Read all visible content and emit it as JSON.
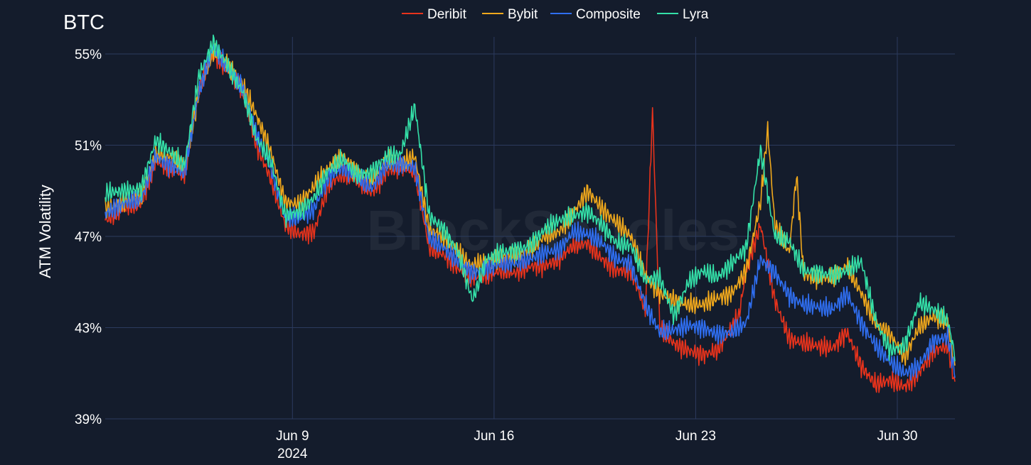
{
  "chart_data": {
    "type": "line",
    "title": "BTC",
    "ylabel": "ATM Volatility",
    "xlabel": "",
    "x_range": [
      "2024-06-02T12:00",
      "2024-07-02T00:00"
    ],
    "ylim": [
      39,
      55.5
    ],
    "y_ticks": [
      {
        "value": 39,
        "label": "39%"
      },
      {
        "value": 43,
        "label": "43%"
      },
      {
        "value": 47,
        "label": "47%"
      },
      {
        "value": 51,
        "label": "51%"
      },
      {
        "value": 55,
        "label": "55%"
      }
    ],
    "x_ticks": [
      {
        "value": "2024-06-09",
        "label": "Jun 9",
        "sublabel": "2024"
      },
      {
        "value": "2024-06-16",
        "label": "Jun 16",
        "sublabel": ""
      },
      {
        "value": "2024-06-23",
        "label": "Jun 23",
        "sublabel": ""
      },
      {
        "value": "2024-06-30",
        "label": "Jun 30",
        "sublabel": ""
      }
    ],
    "grid": true,
    "legend_position": "top-center",
    "watermark": "BlockScholes",
    "series": [
      {
        "name": "Deribit",
        "color": "#e8331c",
        "x": [
          "2024-06-02T12:00",
          "2024-06-03T06:00",
          "2024-06-03T18:00",
          "2024-06-04T06:00",
          "2024-06-04T18:00",
          "2024-06-05T06:00",
          "2024-06-05T18:00",
          "2024-06-06T06:00",
          "2024-06-06T18:00",
          "2024-06-07T06:00",
          "2024-06-07T18:00",
          "2024-06-08T06:00",
          "2024-06-08T18:00",
          "2024-06-09T06:00",
          "2024-06-09T18:00",
          "2024-06-10T06:00",
          "2024-06-10T18:00",
          "2024-06-11T06:00",
          "2024-06-11T18:00",
          "2024-06-12T06:00",
          "2024-06-12T18:00",
          "2024-06-13T06:00",
          "2024-06-13T18:00",
          "2024-06-14T06:00",
          "2024-06-14T18:00",
          "2024-06-15T06:00",
          "2024-06-15T18:00",
          "2024-06-16T06:00",
          "2024-06-16T18:00",
          "2024-06-17T06:00",
          "2024-06-17T18:00",
          "2024-06-18T06:00",
          "2024-06-18T18:00",
          "2024-06-19T06:00",
          "2024-06-19T18:00",
          "2024-06-20T06:00",
          "2024-06-20T18:00",
          "2024-06-21T06:00",
          "2024-06-21T12:00",
          "2024-06-21T18:00",
          "2024-06-22T06:00",
          "2024-06-22T18:00",
          "2024-06-23T06:00",
          "2024-06-23T18:00",
          "2024-06-24T06:00",
          "2024-06-24T12:00",
          "2024-06-24T18:00",
          "2024-06-25T06:00",
          "2024-06-25T18:00",
          "2024-06-26T06:00",
          "2024-06-26T18:00",
          "2024-06-27T06:00",
          "2024-06-27T18:00",
          "2024-06-28T06:00",
          "2024-06-28T18:00",
          "2024-06-29T06:00",
          "2024-06-29T18:00",
          "2024-06-30T06:00",
          "2024-06-30T18:00",
          "2024-07-01T06:00",
          "2024-07-01T18:00",
          "2024-07-02T00:00"
        ],
        "values": [
          47.7,
          48.3,
          48.4,
          50.3,
          50.0,
          49.7,
          53.5,
          55.0,
          54.3,
          53.5,
          51.0,
          49.5,
          47.5,
          47.1,
          47.2,
          49.3,
          49.7,
          49.5,
          48.9,
          49.8,
          50.1,
          49.8,
          46.5,
          46.2,
          45.6,
          45.2,
          45.3,
          45.5,
          45.4,
          45.7,
          45.7,
          46.0,
          46.6,
          46.7,
          46.0,
          45.5,
          45.5,
          43.8,
          52.5,
          43.0,
          42.3,
          42.0,
          41.8,
          42.0,
          43.0,
          43.5,
          45.5,
          47.5,
          44.2,
          42.5,
          42.3,
          42.2,
          42.1,
          42.8,
          41.3,
          40.5,
          40.7,
          40.4,
          41.0,
          42.0,
          42.2,
          40.5
        ]
      },
      {
        "name": "Bybit",
        "color": "#f0a81c",
        "x": [
          "2024-06-02T12:00",
          "2024-06-03T06:00",
          "2024-06-03T18:00",
          "2024-06-04T06:00",
          "2024-06-04T18:00",
          "2024-06-05T06:00",
          "2024-06-05T18:00",
          "2024-06-06T06:00",
          "2024-06-06T18:00",
          "2024-06-07T06:00",
          "2024-06-07T18:00",
          "2024-06-08T06:00",
          "2024-06-08T18:00",
          "2024-06-09T06:00",
          "2024-06-09T18:00",
          "2024-06-10T06:00",
          "2024-06-10T18:00",
          "2024-06-11T06:00",
          "2024-06-11T18:00",
          "2024-06-12T06:00",
          "2024-06-12T18:00",
          "2024-06-13T06:00",
          "2024-06-13T18:00",
          "2024-06-14T06:00",
          "2024-06-14T18:00",
          "2024-06-15T06:00",
          "2024-06-15T18:00",
          "2024-06-16T06:00",
          "2024-06-16T18:00",
          "2024-06-17T06:00",
          "2024-06-17T18:00",
          "2024-06-18T06:00",
          "2024-06-18T18:00",
          "2024-06-19T06:00",
          "2024-06-19T18:00",
          "2024-06-20T06:00",
          "2024-06-20T18:00",
          "2024-06-21T06:00",
          "2024-06-21T18:00",
          "2024-06-22T06:00",
          "2024-06-22T18:00",
          "2024-06-23T06:00",
          "2024-06-23T18:00",
          "2024-06-24T06:00",
          "2024-06-24T18:00",
          "2024-06-25T06:00",
          "2024-06-25T12:00",
          "2024-06-25T18:00",
          "2024-06-26T06:00",
          "2024-06-26T12:00",
          "2024-06-26T18:00",
          "2024-06-27T06:00",
          "2024-06-27T18:00",
          "2024-06-28T06:00",
          "2024-06-28T18:00",
          "2024-06-29T06:00",
          "2024-06-29T18:00",
          "2024-06-30T06:00",
          "2024-06-30T18:00",
          "2024-07-01T06:00",
          "2024-07-01T18:00",
          "2024-07-02T00:00"
        ],
        "values": [
          48.2,
          48.6,
          48.8,
          50.6,
          50.5,
          50.0,
          53.3,
          55.2,
          54.5,
          53.7,
          52.3,
          50.7,
          48.5,
          48.4,
          49.2,
          50.0,
          50.5,
          49.8,
          49.5,
          50.3,
          50.2,
          50.5,
          47.3,
          47.0,
          46.3,
          45.7,
          45.9,
          46.1,
          46.2,
          46.4,
          47.0,
          47.2,
          48.0,
          49.0,
          48.2,
          47.6,
          47.0,
          45.3,
          44.5,
          44.2,
          44.0,
          44.0,
          44.3,
          44.5,
          45.5,
          48.5,
          51.7,
          47.5,
          46.3,
          49.7,
          45.3,
          45.2,
          45.2,
          45.7,
          44.5,
          43.2,
          42.7,
          41.7,
          43.0,
          43.5,
          43.2,
          41.2
        ]
      },
      {
        "name": "Composite",
        "color": "#2f6ef0",
        "x": [
          "2024-06-02T12:00",
          "2024-06-03T06:00",
          "2024-06-03T18:00",
          "2024-06-04T06:00",
          "2024-06-04T18:00",
          "2024-06-05T06:00",
          "2024-06-05T18:00",
          "2024-06-06T06:00",
          "2024-06-06T18:00",
          "2024-06-07T06:00",
          "2024-06-07T18:00",
          "2024-06-08T06:00",
          "2024-06-08T18:00",
          "2024-06-09T06:00",
          "2024-06-09T18:00",
          "2024-06-10T06:00",
          "2024-06-10T18:00",
          "2024-06-11T06:00",
          "2024-06-11T18:00",
          "2024-06-12T06:00",
          "2024-06-12T18:00",
          "2024-06-13T06:00",
          "2024-06-13T18:00",
          "2024-06-14T06:00",
          "2024-06-14T18:00",
          "2024-06-15T06:00",
          "2024-06-15T18:00",
          "2024-06-16T06:00",
          "2024-06-16T18:00",
          "2024-06-17T06:00",
          "2024-06-17T18:00",
          "2024-06-18T06:00",
          "2024-06-18T18:00",
          "2024-06-19T06:00",
          "2024-06-19T18:00",
          "2024-06-20T06:00",
          "2024-06-20T18:00",
          "2024-06-21T06:00",
          "2024-06-21T18:00",
          "2024-06-22T06:00",
          "2024-06-22T18:00",
          "2024-06-23T06:00",
          "2024-06-23T18:00",
          "2024-06-24T06:00",
          "2024-06-24T18:00",
          "2024-06-25T06:00",
          "2024-06-25T18:00",
          "2024-06-26T06:00",
          "2024-06-26T18:00",
          "2024-06-27T06:00",
          "2024-06-27T18:00",
          "2024-06-28T06:00",
          "2024-06-28T18:00",
          "2024-06-29T06:00",
          "2024-06-29T18:00",
          "2024-06-30T06:00",
          "2024-06-30T18:00",
          "2024-07-01T06:00",
          "2024-07-01T18:00",
          "2024-07-02T00:00"
        ],
        "values": [
          48.0,
          48.5,
          48.6,
          50.5,
          50.1,
          49.8,
          53.3,
          55.3,
          54.4,
          53.6,
          51.5,
          50.0,
          47.8,
          47.8,
          48.2,
          49.6,
          50.0,
          49.6,
          49.1,
          50.1,
          50.2,
          50.0,
          46.9,
          46.5,
          45.9,
          45.4,
          45.6,
          45.8,
          45.8,
          46.0,
          46.3,
          46.4,
          47.2,
          47.1,
          46.7,
          46.0,
          45.8,
          44.0,
          42.8,
          42.9,
          43.1,
          43.0,
          42.7,
          42.8,
          43.2,
          46.0,
          45.4,
          44.4,
          44.0,
          43.9,
          43.8,
          44.5,
          43.2,
          42.2,
          41.5,
          41.0,
          41.3,
          42.4,
          42.6,
          41.0
        ]
      },
      {
        "name": "Lyra",
        "color": "#34e0a8",
        "x": [
          "2024-06-02T12:00",
          "2024-06-03T06:00",
          "2024-06-03T18:00",
          "2024-06-04T06:00",
          "2024-06-04T18:00",
          "2024-06-05T06:00",
          "2024-06-05T18:00",
          "2024-06-06T06:00",
          "2024-06-06T18:00",
          "2024-06-07T06:00",
          "2024-06-07T18:00",
          "2024-06-08T06:00",
          "2024-06-08T18:00",
          "2024-06-09T06:00",
          "2024-06-09T18:00",
          "2024-06-10T06:00",
          "2024-06-10T18:00",
          "2024-06-11T06:00",
          "2024-06-11T18:00",
          "2024-06-12T06:00",
          "2024-06-12T18:00",
          "2024-06-13T06:00",
          "2024-06-13T18:00",
          "2024-06-14T06:00",
          "2024-06-14T18:00",
          "2024-06-15T06:00",
          "2024-06-15T18:00",
          "2024-06-16T06:00",
          "2024-06-16T18:00",
          "2024-06-17T06:00",
          "2024-06-17T18:00",
          "2024-06-18T06:00",
          "2024-06-18T18:00",
          "2024-06-19T06:00",
          "2024-06-19T18:00",
          "2024-06-20T06:00",
          "2024-06-20T18:00",
          "2024-06-21T06:00",
          "2024-06-21T18:00",
          "2024-06-22T06:00",
          "2024-06-22T18:00",
          "2024-06-23T06:00",
          "2024-06-23T18:00",
          "2024-06-24T06:00",
          "2024-06-24T18:00",
          "2024-06-25T06:00",
          "2024-06-25T18:00",
          "2024-06-26T06:00",
          "2024-06-26T18:00",
          "2024-06-27T06:00",
          "2024-06-27T18:00",
          "2024-06-28T06:00",
          "2024-06-28T18:00",
          "2024-06-29T06:00",
          "2024-06-29T18:00",
          "2024-06-30T06:00",
          "2024-06-30T18:00",
          "2024-07-01T06:00",
          "2024-07-01T18:00",
          "2024-07-02T00:00"
        ],
        "values": [
          48.9,
          49.0,
          49.1,
          51.2,
          50.7,
          50.1,
          54.0,
          55.5,
          54.5,
          53.4,
          51.3,
          50.3,
          47.9,
          48.1,
          48.7,
          49.9,
          50.4,
          49.7,
          49.8,
          50.5,
          50.6,
          52.7,
          47.9,
          47.3,
          46.3,
          44.2,
          46.0,
          46.3,
          46.4,
          46.6,
          47.3,
          47.7,
          47.9,
          48.1,
          47.5,
          46.7,
          46.6,
          45.1,
          45.2,
          43.5,
          45.0,
          45.5,
          45.2,
          45.8,
          46.5,
          50.8,
          47.0,
          46.8,
          45.5,
          45.4,
          45.3,
          45.5,
          45.9,
          43.3,
          42.0,
          42.2,
          44.1,
          43.8,
          43.3,
          41.8
        ]
      }
    ]
  }
}
